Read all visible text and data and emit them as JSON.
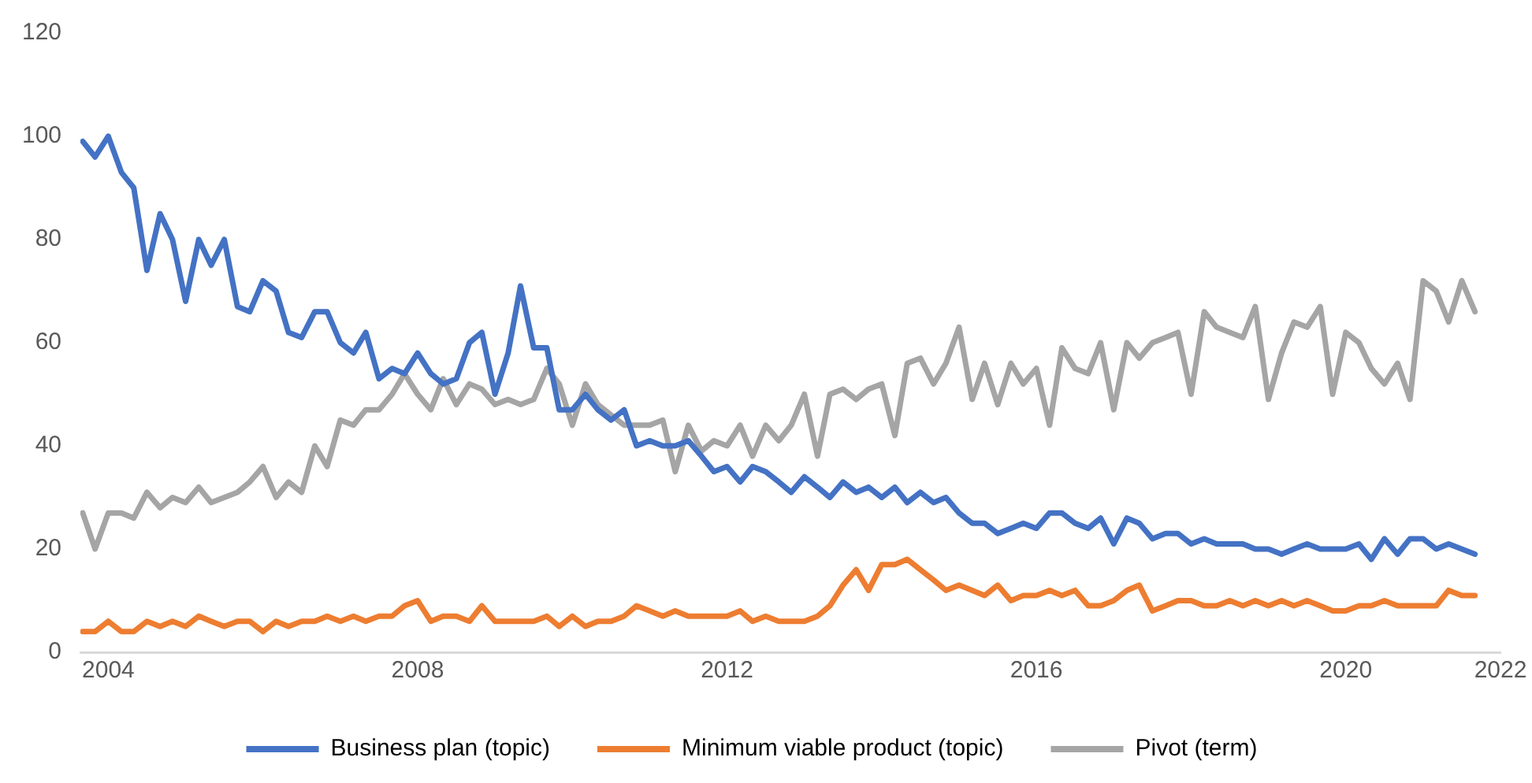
{
  "chart_data": {
    "type": "line",
    "legend": "bottom",
    "grid": false,
    "marker": "none",
    "line_style": "solid",
    "xlim": [
      2003.64,
      2022
    ],
    "xticks": [
      2004,
      2008,
      2012,
      2016,
      2020,
      2022
    ],
    "ylim": [
      0,
      120
    ],
    "yticks": [
      0,
      20,
      40,
      60,
      80,
      100,
      120
    ],
    "x": [
      2003.67,
      2003.83,
      2004,
      2004.17,
      2004.33,
      2004.5,
      2004.67,
      2004.83,
      2005,
      2005.17,
      2005.33,
      2005.5,
      2005.67,
      2005.83,
      2006,
      2006.17,
      2006.33,
      2006.5,
      2006.67,
      2006.83,
      2007,
      2007.17,
      2007.33,
      2007.5,
      2007.67,
      2007.83,
      2008,
      2008.17,
      2008.33,
      2008.5,
      2008.67,
      2008.83,
      2009,
      2009.17,
      2009.33,
      2009.5,
      2009.67,
      2009.83,
      2010,
      2010.17,
      2010.33,
      2010.5,
      2010.67,
      2010.83,
      2011,
      2011.17,
      2011.33,
      2011.5,
      2011.67,
      2011.83,
      2012,
      2012.17,
      2012.33,
      2012.5,
      2012.67,
      2012.83,
      2013,
      2013.17,
      2013.33,
      2013.5,
      2013.67,
      2013.83,
      2014,
      2014.17,
      2014.33,
      2014.5,
      2014.67,
      2014.83,
      2015,
      2015.17,
      2015.33,
      2015.5,
      2015.67,
      2015.83,
      2016,
      2016.17,
      2016.33,
      2016.5,
      2016.67,
      2016.83,
      2017,
      2017.17,
      2017.33,
      2017.5,
      2017.67,
      2017.83,
      2018,
      2018.17,
      2018.33,
      2018.5,
      2018.67,
      2018.83,
      2019,
      2019.17,
      2019.33,
      2019.5,
      2019.67,
      2019.83,
      2020,
      2020.17,
      2020.33,
      2020.5,
      2020.67,
      2020.83,
      2021,
      2021.17,
      2021.33,
      2021.5,
      2021.67
    ],
    "series": [
      {
        "name": "Business plan (topic)",
        "color": "#4472c4",
        "values": [
          99,
          96,
          100,
          93,
          90,
          74,
          85,
          80,
          68,
          80,
          75,
          80,
          67,
          66,
          72,
          70,
          62,
          61,
          66,
          66,
          60,
          58,
          62,
          53,
          55,
          54,
          58,
          54,
          52,
          53,
          60,
          62,
          50,
          58,
          71,
          59,
          59,
          47,
          47,
          50,
          47,
          45,
          47,
          40,
          41,
          40,
          40,
          41,
          38,
          35,
          36,
          33,
          36,
          35,
          33,
          31,
          34,
          32,
          30,
          33,
          31,
          32,
          30,
          32,
          29,
          31,
          29,
          30,
          27,
          25,
          25,
          23,
          24,
          25,
          24,
          27,
          27,
          25,
          24,
          26,
          21,
          26,
          25,
          22,
          23,
          23,
          21,
          22,
          21,
          21,
          21,
          20,
          20,
          19,
          20,
          21,
          20,
          20,
          20,
          21,
          18,
          22,
          19,
          22,
          22,
          20,
          21,
          20,
          19
        ]
      },
      {
        "name": "Minimum viable product (topic)",
        "color": "#ed7d31",
        "values": [
          4,
          4,
          6,
          4,
          4,
          6,
          5,
          6,
          5,
          7,
          6,
          5,
          6,
          6,
          4,
          6,
          5,
          6,
          6,
          7,
          6,
          7,
          6,
          7,
          7,
          9,
          10,
          6,
          7,
          7,
          6,
          9,
          6,
          6,
          6,
          6,
          7,
          5,
          7,
          5,
          6,
          6,
          7,
          9,
          8,
          7,
          8,
          7,
          7,
          7,
          7,
          8,
          6,
          7,
          6,
          6,
          6,
          7,
          9,
          13,
          16,
          12,
          17,
          17,
          18,
          16,
          14,
          12,
          13,
          12,
          11,
          13,
          10,
          11,
          11,
          12,
          11,
          12,
          9,
          9,
          10,
          12,
          13,
          8,
          9,
          10,
          10,
          9,
          9,
          10,
          9,
          10,
          9,
          10,
          9,
          10,
          9,
          8,
          8,
          9,
          9,
          10,
          9,
          9,
          9,
          9,
          12,
          11,
          11
        ]
      },
      {
        "name": "Pivot (term)",
        "color": "#a5a5a5",
        "values": [
          27,
          20,
          27,
          27,
          26,
          31,
          28,
          30,
          29,
          32,
          29,
          30,
          31,
          33,
          36,
          30,
          33,
          31,
          40,
          36,
          45,
          44,
          47,
          47,
          50,
          54,
          50,
          47,
          53,
          48,
          52,
          51,
          48,
          49,
          48,
          49,
          55,
          52,
          44,
          52,
          48,
          46,
          44,
          44,
          44,
          45,
          35,
          44,
          39,
          41,
          40,
          44,
          38,
          44,
          41,
          44,
          50,
          38,
          50,
          51,
          49,
          51,
          52,
          42,
          56,
          57,
          52,
          56,
          63,
          49,
          56,
          48,
          56,
          52,
          55,
          44,
          59,
          55,
          54,
          60,
          47,
          60,
          57,
          60,
          61,
          62,
          50,
          66,
          63,
          62,
          61,
          67,
          49,
          58,
          64,
          63,
          67,
          50,
          62,
          60,
          55,
          52,
          56,
          49,
          72,
          70,
          64,
          72,
          66
        ]
      }
    ]
  }
}
